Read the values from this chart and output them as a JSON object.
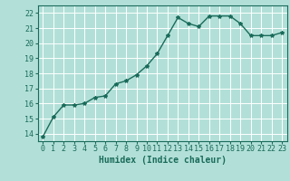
{
  "x": [
    0,
    1,
    2,
    3,
    4,
    5,
    6,
    7,
    8,
    9,
    10,
    11,
    12,
    13,
    14,
    15,
    16,
    17,
    18,
    19,
    20,
    21,
    22,
    23
  ],
  "y": [
    13.8,
    15.1,
    15.9,
    15.9,
    16.0,
    16.4,
    16.5,
    17.3,
    17.5,
    17.9,
    18.5,
    19.3,
    20.5,
    21.7,
    21.3,
    21.1,
    21.8,
    21.8,
    21.8,
    21.3,
    20.5,
    20.5,
    20.5,
    20.7
  ],
  "xlabel": "Humidex (Indice chaleur)",
  "ylim": [
    13.5,
    22.5
  ],
  "xlim": [
    -0.5,
    23.5
  ],
  "yticks": [
    14,
    15,
    16,
    17,
    18,
    19,
    20,
    21,
    22
  ],
  "xticks": [
    0,
    1,
    2,
    3,
    4,
    5,
    6,
    7,
    8,
    9,
    10,
    11,
    12,
    13,
    14,
    15,
    16,
    17,
    18,
    19,
    20,
    21,
    22,
    23
  ],
  "line_color": "#1a6b5a",
  "marker": "*",
  "marker_color": "#1a6b5a",
  "bg_color": "#b2e0d8",
  "grid_color": "#ffffff",
  "axes_color": "#1a6b5a",
  "label_color": "#1a6b5a",
  "tick_color": "#1a6b5a",
  "font_family": "monospace",
  "xlabel_fontsize": 7,
  "tick_fontsize": 6,
  "line_width": 1.0,
  "marker_size": 3
}
